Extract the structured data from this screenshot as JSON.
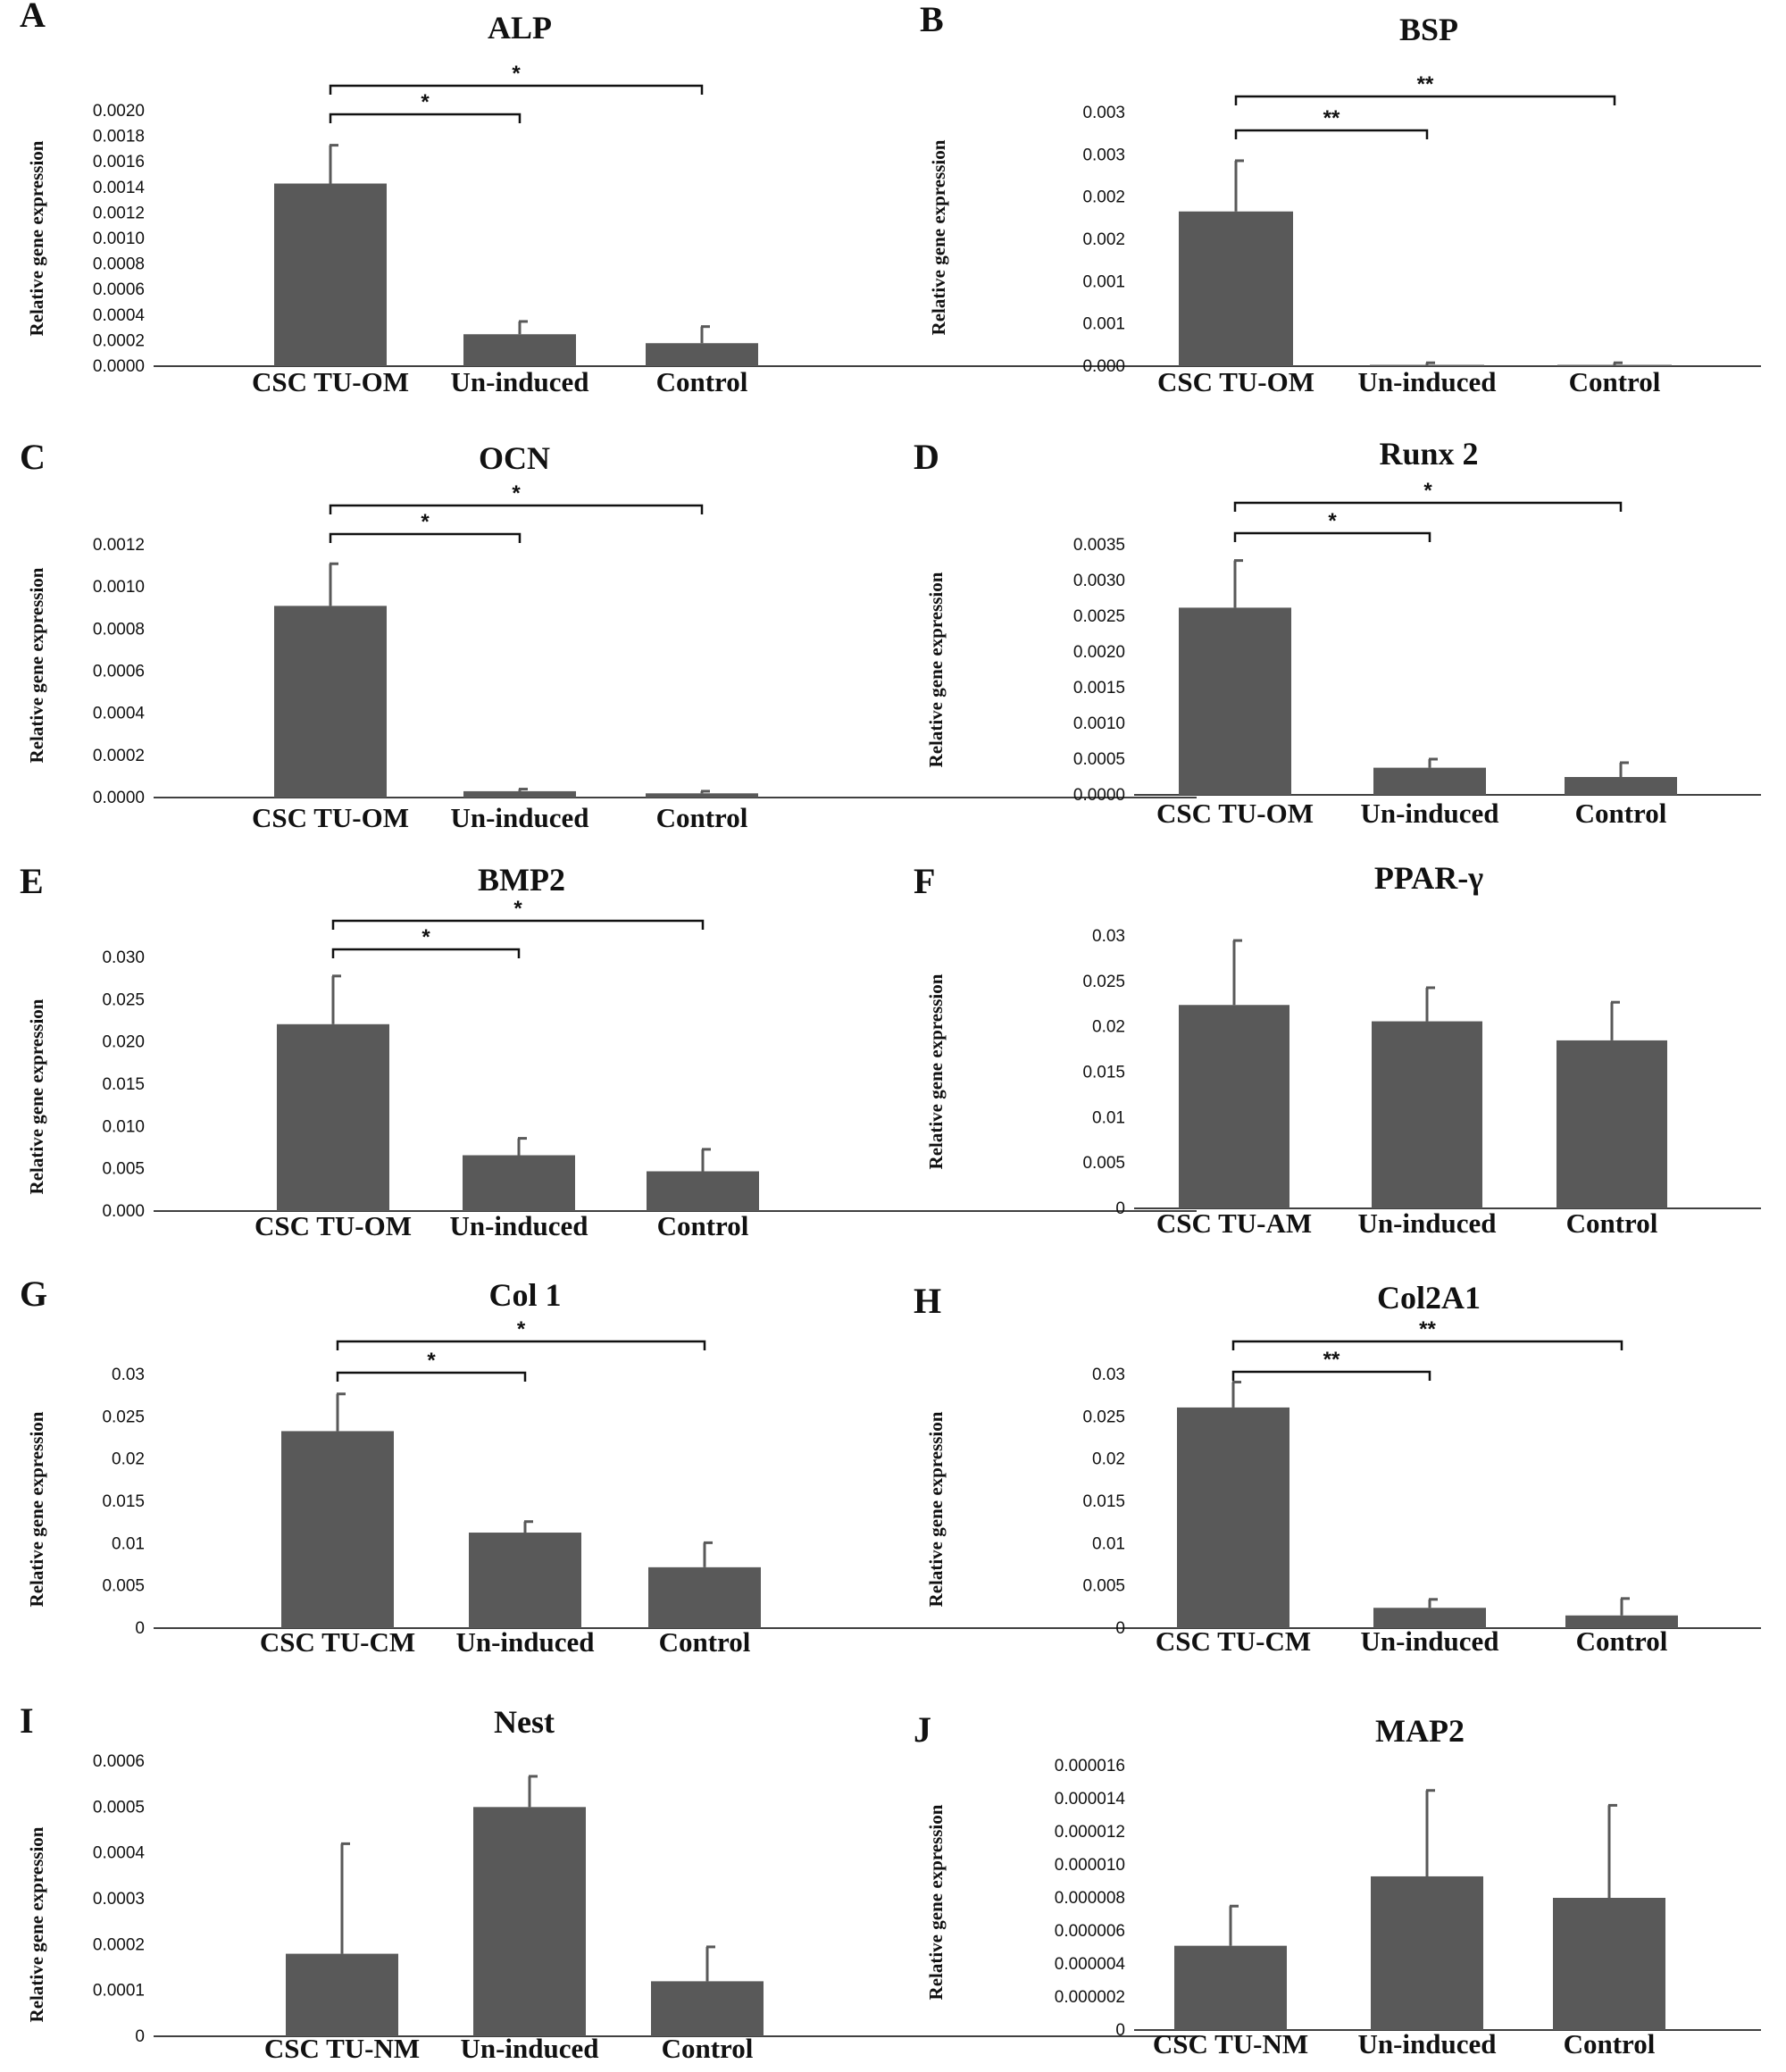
{
  "figure": {
    "bar_color": "#595959",
    "axis_color": "#404040",
    "text_color": "#111111"
  },
  "chart_data": [
    {
      "panel": "A",
      "title": "ALP",
      "type": "bar",
      "ylabel": "Relative gene expression",
      "categories": [
        "CSC TU-OM",
        "Un-induced",
        "Control"
      ],
      "values": [
        0.00143,
        0.00025,
        0.00018
      ],
      "errors": [
        0.0003,
        0.0001,
        0.00013
      ],
      "ylim": [
        0,
        0.002
      ],
      "yticks": [
        "0.0000",
        "0.0002",
        "0.0004",
        "0.0006",
        "0.0008",
        "0.0010",
        "0.0012",
        "0.0014",
        "0.0016",
        "0.0018",
        "0.0020"
      ],
      "significance": [
        {
          "from": 0,
          "to": 1,
          "label": "*"
        },
        {
          "from": 0,
          "to": 2,
          "label": "*"
        }
      ]
    },
    {
      "panel": "B",
      "title": "BSP",
      "type": "bar",
      "ylabel": "Relative gene expression",
      "categories": [
        "CSC TU-OM",
        "Un-induced",
        "Control"
      ],
      "values": [
        0.00183,
        1e-05,
        1e-05
      ],
      "errors": [
        0.0006,
        3e-05,
        3e-05
      ],
      "ylim": [
        0,
        0.003
      ],
      "yticks": [
        "0.000",
        "0.001",
        "0.001",
        "0.002",
        "0.002",
        "0.003",
        "0.003"
      ],
      "significance": [
        {
          "from": 0,
          "to": 1,
          "label": "**"
        },
        {
          "from": 0,
          "to": 2,
          "label": "**"
        }
      ]
    },
    {
      "panel": "C",
      "title": "OCN",
      "type": "bar",
      "ylabel": "Relative gene expression",
      "categories": [
        "CSC TU-OM",
        "Un-induced",
        "Control"
      ],
      "values": [
        0.00091,
        3e-05,
        2e-05
      ],
      "errors": [
        0.0002,
        1e-05,
        1e-05
      ],
      "ylim": [
        0,
        0.0012
      ],
      "yticks": [
        "0.0000",
        "0.0002",
        "0.0004",
        "0.0006",
        "0.0008",
        "0.0010",
        "0.0012"
      ],
      "significance": [
        {
          "from": 0,
          "to": 1,
          "label": "*"
        },
        {
          "from": 0,
          "to": 2,
          "label": "*"
        }
      ]
    },
    {
      "panel": "D",
      "title": "Runx 2",
      "type": "bar",
      "ylabel": "Relative gene expression",
      "categories": [
        "CSC TU-OM",
        "Un-induced",
        "Control"
      ],
      "values": [
        0.00262,
        0.00038,
        0.00025
      ],
      "errors": [
        0.00066,
        0.00012,
        0.0002
      ],
      "ylim": [
        0,
        0.0035
      ],
      "yticks": [
        "0.0000",
        "0.0005",
        "0.0010",
        "0.0015",
        "0.0020",
        "0.0025",
        "0.0030",
        "0.0035"
      ],
      "significance": [
        {
          "from": 0,
          "to": 1,
          "label": "*"
        },
        {
          "from": 0,
          "to": 2,
          "label": "*"
        }
      ]
    },
    {
      "panel": "E",
      "title": "BMP2",
      "type": "bar",
      "ylabel": "Relative gene expression",
      "categories": [
        "CSC TU-OM",
        "Un-induced",
        "Control"
      ],
      "values": [
        0.0221,
        0.0066,
        0.0047
      ],
      "errors": [
        0.0057,
        0.002,
        0.0026
      ],
      "ylim": [
        0,
        0.03
      ],
      "yticks": [
        "0.000",
        "0.005",
        "0.010",
        "0.015",
        "0.020",
        "0.025",
        "0.030"
      ],
      "significance": [
        {
          "from": 0,
          "to": 1,
          "label": "*"
        },
        {
          "from": 0,
          "to": 2,
          "label": "*"
        }
      ]
    },
    {
      "panel": "F",
      "title": "PPAR-γ",
      "type": "bar",
      "ylabel": "Relative gene expression",
      "categories": [
        "CSC TU-AM",
        "Un-induced",
        "Control"
      ],
      "values": [
        0.0224,
        0.0206,
        0.0185
      ],
      "errors": [
        0.0071,
        0.0037,
        0.0042
      ],
      "ylim": [
        0,
        0.03
      ],
      "yticks": [
        "0",
        "0.005",
        "0.01",
        "0.015",
        "0.02",
        "0.025",
        "0.03"
      ],
      "significance": []
    },
    {
      "panel": "G",
      "title": "Col 1",
      "type": "bar",
      "ylabel": "Relative gene expression",
      "categories": [
        "CSC TU-CM",
        "Un-induced",
        "Control"
      ],
      "values": [
        0.0233,
        0.0113,
        0.0072
      ],
      "errors": [
        0.0044,
        0.0013,
        0.0029
      ],
      "ylim": [
        0,
        0.03
      ],
      "yticks": [
        "0",
        "0.005",
        "0.01",
        "0.015",
        "0.02",
        "0.025",
        "0.03"
      ],
      "significance": [
        {
          "from": 0,
          "to": 1,
          "label": "*"
        },
        {
          "from": 0,
          "to": 2,
          "label": "*"
        }
      ]
    },
    {
      "panel": "H",
      "title": "Col2A1",
      "type": "bar",
      "ylabel": "Relative gene expression",
      "categories": [
        "CSC TU-CM",
        "Un-induced",
        "Control"
      ],
      "values": [
        0.0261,
        0.0024,
        0.0015
      ],
      "errors": [
        0.003,
        0.001,
        0.002
      ],
      "ylim": [
        0,
        0.03
      ],
      "yticks": [
        "0",
        "0.005",
        "0.01",
        "0.015",
        "0.02",
        "0.025",
        "0.03"
      ],
      "significance": [
        {
          "from": 0,
          "to": 1,
          "label": "**"
        },
        {
          "from": 0,
          "to": 2,
          "label": "**"
        }
      ]
    },
    {
      "panel": "I",
      "title": "Nest",
      "type": "bar",
      "ylabel": "Relative gene expression",
      "categories": [
        "CSC TU-NM",
        "Un-induced",
        "Control"
      ],
      "values": [
        0.00018,
        0.0005,
        0.00012
      ],
      "errors": [
        0.00024,
        6.7e-05,
        7.5e-05
      ],
      "ylim": [
        0,
        0.0006
      ],
      "yticks": [
        "0",
        "0.0001",
        "0.0002",
        "0.0003",
        "0.0004",
        "0.0005",
        "0.0006"
      ],
      "significance": []
    },
    {
      "panel": "J",
      "title": "MAP2",
      "type": "bar",
      "ylabel": "Relative gene expression",
      "categories": [
        "CSC TU-NM",
        "Un-induced",
        "Control"
      ],
      "values": [
        5.1e-06,
        9.3e-06,
        8e-06
      ],
      "errors": [
        2.4e-06,
        5.2e-06,
        5.6e-06
      ],
      "ylim": [
        0,
        1.6e-05
      ],
      "yticks": [
        "0",
        "0.000002",
        "0.000004",
        "0.000006",
        "0.000008",
        "0.000010",
        "0.000012",
        "0.000014",
        "0.000016"
      ],
      "significance": []
    }
  ]
}
